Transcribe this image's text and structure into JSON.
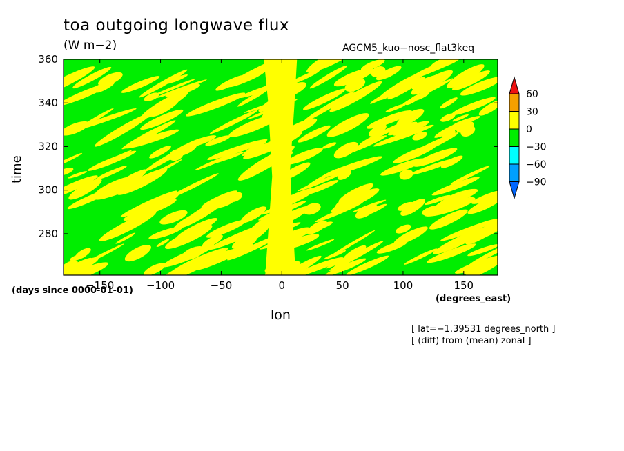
{
  "chart_data": {
    "type": "heatmap",
    "title": "toa outgoing longwave flux",
    "units": "(W m−2)",
    "run_label": "AGCM5_kuo−nosc_flat3keq",
    "xlabel": "lon",
    "ylabel": "time",
    "y_units_label": "(days since 0000-01-01)",
    "x_units_label": "(degrees_east)",
    "x_range": [
      -180,
      178
    ],
    "y_range": [
      261,
      360
    ],
    "x_ticks": [
      -150,
      -100,
      -50,
      0,
      50,
      100,
      150
    ],
    "x_tick_labels": [
      "−150",
      "−100",
      "−50",
      "0",
      "50",
      "100",
      "150"
    ],
    "y_ticks": [
      280,
      300,
      320,
      340,
      360
    ],
    "y_tick_labels": [
      "280",
      "300",
      "320",
      "340",
      "360"
    ],
    "notes": [
      "[ lat=−1.39531 degrees_north ]",
      "[ (diff) from (mean) zonal ]"
    ],
    "colorbar": {
      "levels": [
        60,
        30,
        0,
        -30,
        -60,
        -90
      ],
      "labels": [
        "60",
        "30",
        "0",
        "−30",
        "−60",
        "−90"
      ],
      "colors": [
        "#ee1111",
        "#f5a000",
        "#ffff00",
        "#00ee00",
        "#00ffff",
        "#00a0ff",
        "#0066ff"
      ]
    },
    "field_description_colors": {
      "positive_0_30": "#ffff00",
      "negative_-30_0": "#00ee00"
    }
  }
}
